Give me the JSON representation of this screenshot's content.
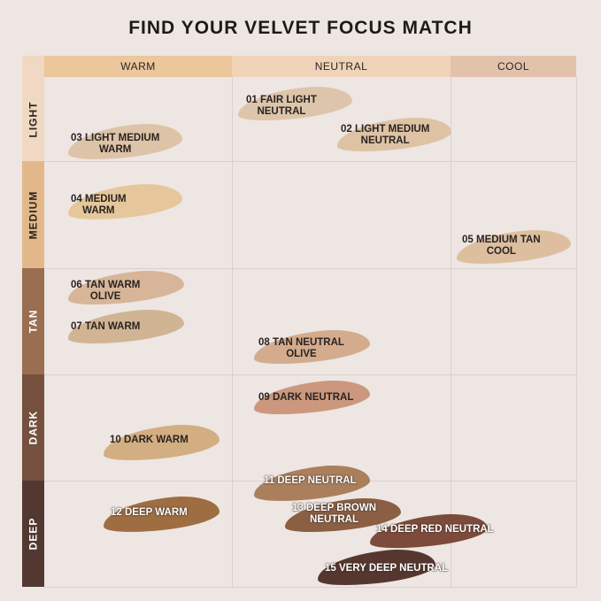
{
  "title": "FIND YOUR VELVET FOCUS MATCH",
  "columns": [
    {
      "label": "WARM",
      "color": "#ebc79b"
    },
    {
      "label": "NEUTRAL",
      "color": "#f0d3b9"
    },
    {
      "label": "COOL",
      "color": "#e3c2ac"
    }
  ],
  "rows": [
    {
      "label": "LIGHT",
      "color": "#f0d8c2",
      "text_color": "#2a2522"
    },
    {
      "label": "MEDIUM",
      "color": "#e2b88a",
      "text_color": "#2a2522"
    },
    {
      "label": "TAN",
      "color": "#9a6e50",
      "text_color": "#ffffff"
    },
    {
      "label": "DARK",
      "color": "#75503f",
      "text_color": "#ffffff"
    },
    {
      "label": "DEEP",
      "color": "#533832",
      "text_color": "#ffffff"
    }
  ],
  "shades": [
    {
      "line1": "01 FAIR LIGHT",
      "line2": "NEUTRAL",
      "color": "#dcc3a8"
    },
    {
      "line1": "02 LIGHT MEDIUM",
      "line2": "NEUTRAL",
      "color": "#dcc0a0"
    },
    {
      "line1": "03 LIGHT MEDIUM",
      "line2": "WARM",
      "color": "#dcc1a3"
    },
    {
      "line1": "04 MEDIUM",
      "line2": "WARM",
      "color": "#e6c597"
    },
    {
      "line1": "05 MEDIUM TAN",
      "line2": "COOL",
      "color": "#dcbd9c"
    },
    {
      "line1": "06 TAN WARM",
      "line2": "OLIVE",
      "color": "#d6b293"
    },
    {
      "line1": "07 TAN WARM",
      "line2": "",
      "color": "#cfb18e"
    },
    {
      "line1": "08 TAN NEUTRAL",
      "line2": "OLIVE",
      "color": "#d3a888"
    },
    {
      "line1": "09 DARK NEUTRAL",
      "line2": "",
      "color": "#c99478"
    },
    {
      "line1": "10 DARK WARM",
      "line2": "",
      "color": "#d2ab7c"
    },
    {
      "line1": "11 DEEP NEUTRAL",
      "line2": "",
      "color": "#a87954"
    },
    {
      "line1": "12 DEEP WARM",
      "line2": "",
      "color": "#9a6638"
    },
    {
      "line1": "13 DEEP BROWN",
      "line2": "NEUTRAL",
      "color": "#85573a"
    },
    {
      "line1": "14 DEEP RED NEUTRAL",
      "line2": "",
      "color": "#774231"
    },
    {
      "line1": "15 VERY DEEP NEUTRAL",
      "line2": "",
      "color": "#4e2d26"
    }
  ]
}
